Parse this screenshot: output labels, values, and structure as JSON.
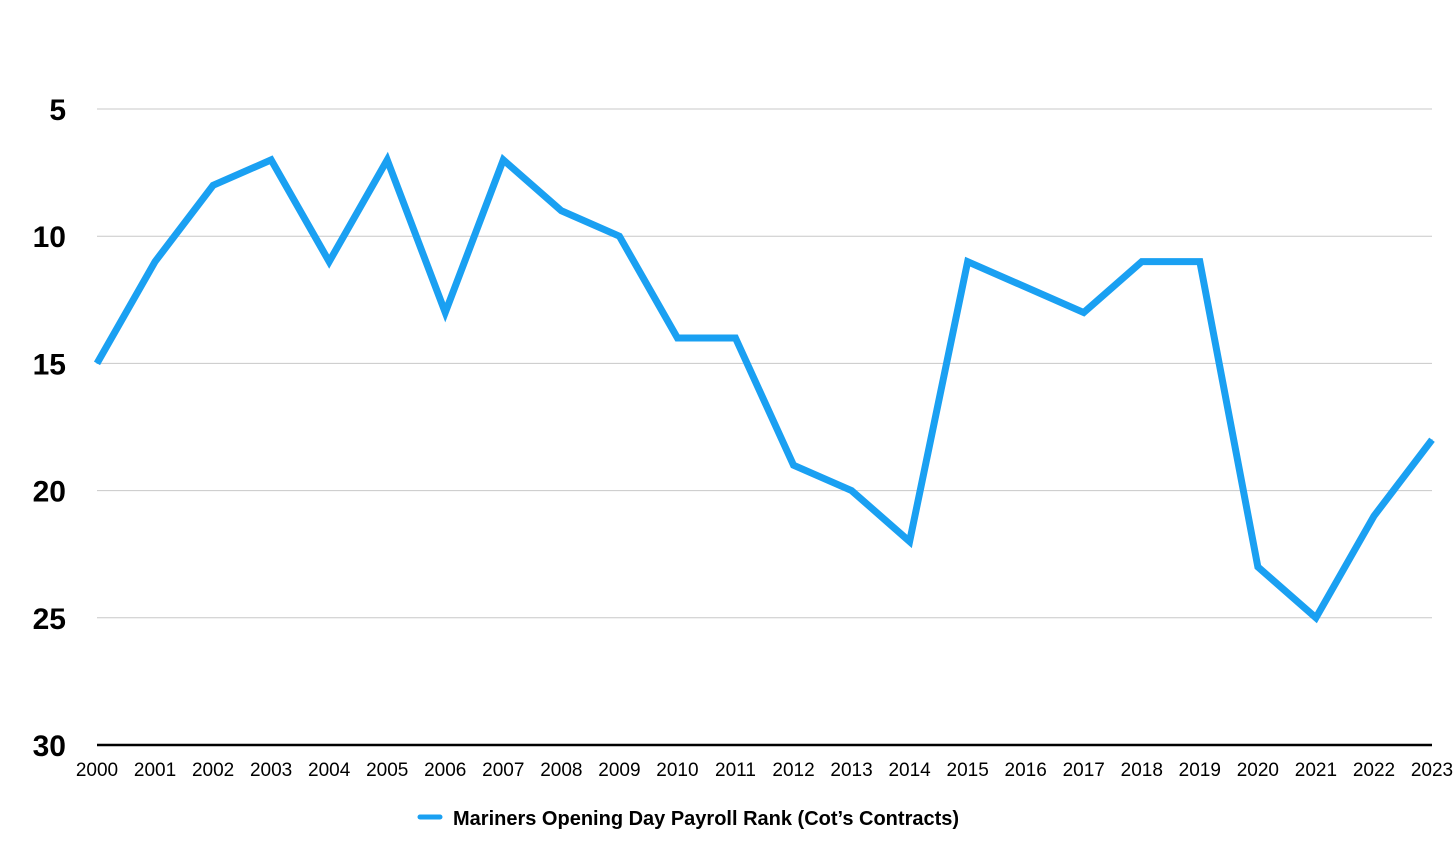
{
  "chart_data": {
    "type": "line",
    "title": "",
    "xlabel": "",
    "ylabel": "",
    "y_inverted": true,
    "ylim": [
      5,
      30
    ],
    "yticks": [
      "5",
      "10",
      "15",
      "20",
      "25",
      "30"
    ],
    "grid": true,
    "legend_position": "bottom-center",
    "categories": [
      "2000",
      "2001",
      "2002",
      "2003",
      "2004",
      "2005",
      "2006",
      "2007",
      "2008",
      "2009",
      "2010",
      "2011",
      "2012",
      "2013",
      "2014",
      "2015",
      "2016",
      "2017",
      "2018",
      "2019",
      "2020",
      "2021",
      "2022",
      "2023"
    ],
    "series": [
      {
        "name": "Mariners Opening Day Payroll Rank (Cot’s Contracts)",
        "color": "#1aa0f2",
        "values": [
          15,
          11,
          8,
          7,
          11,
          7,
          13,
          7,
          9,
          10,
          14,
          14,
          19,
          20,
          22,
          11,
          12,
          13,
          11,
          11,
          23,
          25,
          21,
          18
        ]
      }
    ]
  }
}
